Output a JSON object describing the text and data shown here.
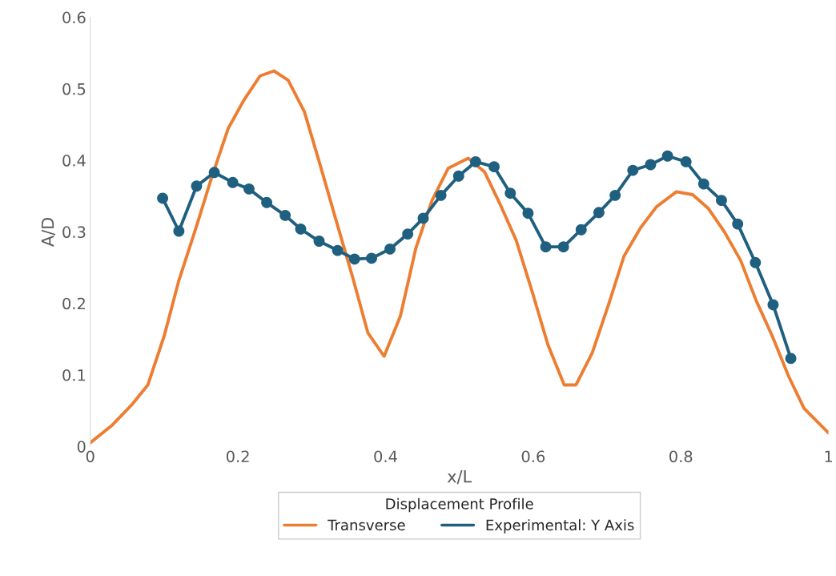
{
  "chart_data": {
    "type": "line",
    "xlabel": "x/L",
    "ylabel": "A/D",
    "legend_title": "Displacement Profile",
    "legend": "bottom",
    "grid": false,
    "xlim": [
      0,
      1
    ],
    "xticks": [
      0,
      0.2,
      0.4,
      0.6,
      0.8,
      1
    ],
    "ylim": [
      0,
      0.6
    ],
    "yticks": [
      0,
      0.1,
      0.2,
      0.3,
      0.4,
      0.5,
      0.6
    ],
    "series": [
      {
        "name": "Transverse",
        "color": "#ed7d31",
        "marker": "none",
        "x": [
          0,
          0.03,
          0.056,
          0.078,
          0.1,
          0.12,
          0.143,
          0.165,
          0.187,
          0.208,
          0.23,
          0.249,
          0.268,
          0.29,
          0.311,
          0.333,
          0.355,
          0.376,
          0.398,
          0.42,
          0.441,
          0.463,
          0.485,
          0.512,
          0.534,
          0.555,
          0.577,
          0.599,
          0.62,
          0.642,
          0.658,
          0.68,
          0.702,
          0.723,
          0.745,
          0.767,
          0.794,
          0.816,
          0.837,
          0.859,
          0.881,
          0.902,
          0.924,
          0.946,
          0.967,
          1.0
        ],
        "values": [
          0.005,
          0.03,
          0.058,
          0.086,
          0.154,
          0.232,
          0.305,
          0.378,
          0.445,
          0.484,
          0.518,
          0.525,
          0.512,
          0.468,
          0.395,
          0.316,
          0.238,
          0.159,
          0.126,
          0.182,
          0.277,
          0.344,
          0.389,
          0.403,
          0.384,
          0.339,
          0.288,
          0.215,
          0.142,
          0.086,
          0.086,
          0.131,
          0.198,
          0.266,
          0.305,
          0.335,
          0.356,
          0.352,
          0.333,
          0.3,
          0.26,
          0.204,
          0.154,
          0.098,
          0.053,
          0.019
        ]
      },
      {
        "name": "Experimental: Y Axis",
        "color": "#1f5f7f",
        "marker": "circle",
        "x": [
          0.098,
          0.12,
          0.144,
          0.168,
          0.193,
          0.215,
          0.239,
          0.264,
          0.285,
          0.31,
          0.335,
          0.358,
          0.381,
          0.406,
          0.43,
          0.451,
          0.475,
          0.499,
          0.522,
          0.547,
          0.569,
          0.593,
          0.617,
          0.641,
          0.665,
          0.689,
          0.711,
          0.735,
          0.759,
          0.782,
          0.807,
          0.831,
          0.855,
          0.877,
          0.901,
          0.925,
          0.949
        ],
        "values": [
          0.347,
          0.301,
          0.364,
          0.383,
          0.369,
          0.36,
          0.341,
          0.323,
          0.304,
          0.287,
          0.274,
          0.262,
          0.263,
          0.276,
          0.297,
          0.319,
          0.351,
          0.378,
          0.398,
          0.391,
          0.354,
          0.326,
          0.279,
          0.279,
          0.303,
          0.327,
          0.351,
          0.386,
          0.394,
          0.406,
          0.398,
          0.367,
          0.344,
          0.311,
          0.257,
          0.198,
          0.123
        ]
      }
    ]
  }
}
